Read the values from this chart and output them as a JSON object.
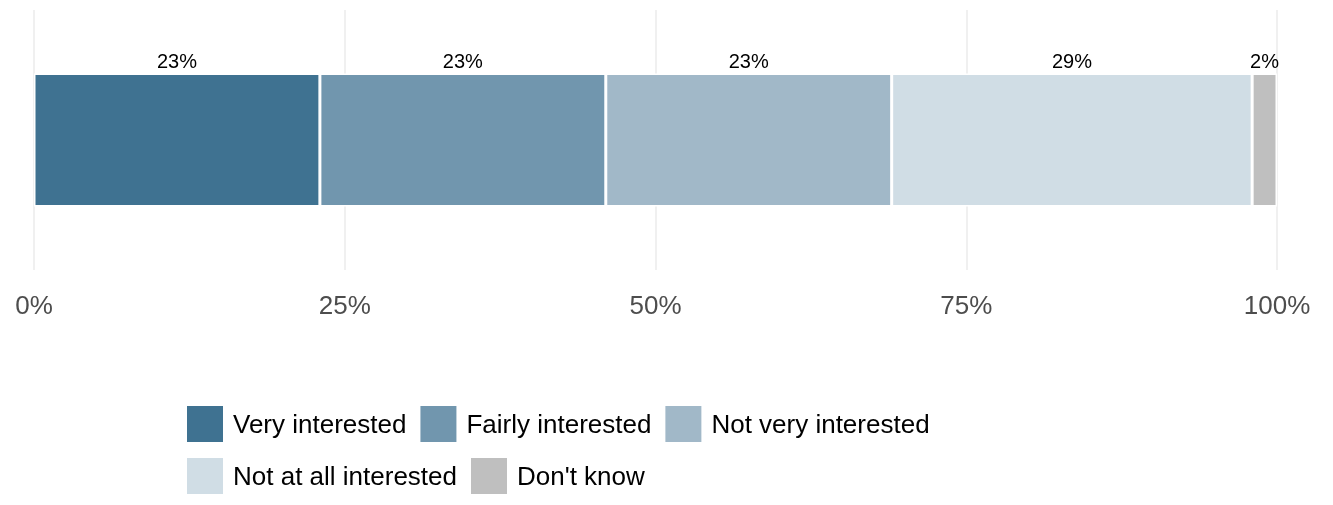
{
  "chart_data": {
    "type": "bar",
    "orientation": "horizontal",
    "stacked": true,
    "categories": [
      null
    ],
    "series": [
      {
        "name": "Very interested",
        "color": "#3f7291",
        "values": [
          23
        ],
        "value_labels": [
          "23%"
        ]
      },
      {
        "name": "Fairly interested",
        "color": "#7196ae",
        "values": [
          23
        ],
        "value_labels": [
          "23%"
        ]
      },
      {
        "name": "Not very interested",
        "color": "#a1b8c8",
        "values": [
          23
        ],
        "value_labels": [
          "23%"
        ]
      },
      {
        "name": "Not at all interested",
        "color": "#d0dde5",
        "values": [
          29
        ],
        "value_labels": [
          "29%"
        ]
      },
      {
        "name": "Don't know",
        "color": "#bfbfbf",
        "values": [
          2
        ],
        "value_labels": [
          "2%"
        ]
      }
    ],
    "xlim": [
      0,
      100
    ],
    "xticks": [
      {
        "value": 0,
        "label": "0%"
      },
      {
        "value": 25,
        "label": "25%"
      },
      {
        "value": 50,
        "label": "50%"
      },
      {
        "value": 75,
        "label": "75%"
      },
      {
        "value": 100,
        "label": "100%"
      }
    ],
    "grid": "x",
    "legend": "bottom"
  }
}
